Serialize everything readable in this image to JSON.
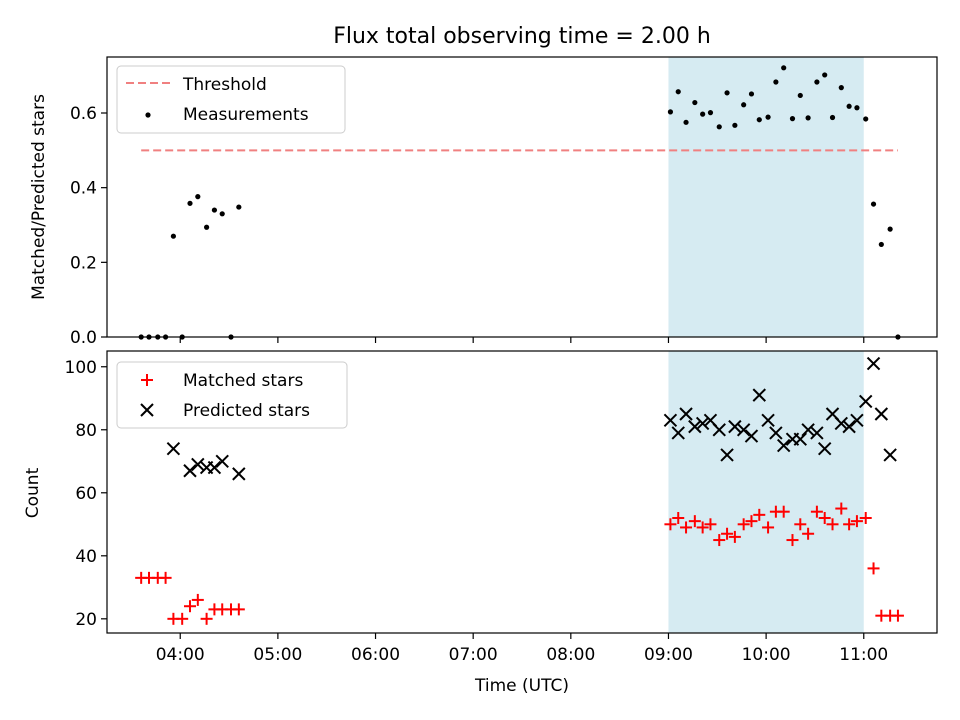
{
  "chart_data": [
    {
      "type": "scatter",
      "title": "Flux total observing time = 2.00 h",
      "ylabel": "Matched/Predicted stars",
      "xlabel": "",
      "x_unit": "hours UTC",
      "xlim": [
        3.25,
        11.75
      ],
      "ylim": [
        0,
        0.75
      ],
      "x_ticks": [
        4,
        5,
        6,
        7,
        8,
        9,
        10,
        11
      ],
      "y_ticks": [
        0.0,
        0.2,
        0.4,
        0.6
      ],
      "y_tick_labels": [
        "0.0",
        "0.2",
        "0.4",
        "0.6"
      ],
      "legend": {
        "position": "top-left",
        "entries": [
          "Threshold",
          "Measurements"
        ]
      },
      "shaded_span": {
        "x0": 9.0,
        "x1": 11.0,
        "color": "#add8e6"
      },
      "threshold": {
        "name": "Threshold",
        "value": 0.5,
        "x0": 3.6,
        "x1": 11.35,
        "color": "#f08080"
      },
      "series": [
        {
          "name": "Measurements",
          "color": "#000000",
          "points": [
            [
              3.6,
              0.0
            ],
            [
              3.68,
              0.0
            ],
            [
              3.77,
              0.0
            ],
            [
              3.85,
              0.0
            ],
            [
              3.93,
              0.27
            ],
            [
              4.02,
              0.0
            ],
            [
              4.1,
              0.358
            ],
            [
              4.18,
              0.376
            ],
            [
              4.27,
              0.294
            ],
            [
              4.35,
              0.34
            ],
            [
              4.43,
              0.33
            ],
            [
              4.52,
              0.0
            ],
            [
              4.6,
              0.348
            ],
            [
              9.02,
              0.603
            ],
            [
              9.1,
              0.657
            ],
            [
              9.18,
              0.575
            ],
            [
              9.27,
              0.628
            ],
            [
              9.35,
              0.597
            ],
            [
              9.43,
              0.601
            ],
            [
              9.52,
              0.563
            ],
            [
              9.6,
              0.654
            ],
            [
              9.68,
              0.567
            ],
            [
              9.77,
              0.622
            ],
            [
              9.85,
              0.651
            ],
            [
              9.93,
              0.582
            ],
            [
              10.02,
              0.589
            ],
            [
              10.1,
              0.683
            ],
            [
              10.18,
              0.721
            ],
            [
              10.27,
              0.585
            ],
            [
              10.35,
              0.647
            ],
            [
              10.43,
              0.587
            ],
            [
              10.52,
              0.683
            ],
            [
              10.6,
              0.702
            ],
            [
              10.68,
              0.588
            ],
            [
              10.77,
              0.668
            ],
            [
              10.85,
              0.618
            ],
            [
              10.93,
              0.614
            ],
            [
              11.02,
              0.584
            ],
            [
              11.1,
              0.356
            ],
            [
              11.18,
              0.248
            ],
            [
              11.27,
              0.289
            ],
            [
              11.35,
              0.0
            ]
          ]
        }
      ]
    },
    {
      "type": "scatter",
      "title": "",
      "ylabel": "Count",
      "xlabel": "Time (UTC)",
      "x_unit": "hours UTC",
      "xlim": [
        3.25,
        11.75
      ],
      "ylim": [
        15.5,
        105
      ],
      "x_ticks": [
        4,
        5,
        6,
        7,
        8,
        9,
        10,
        11
      ],
      "x_tick_labels": [
        "04:00",
        "05:00",
        "06:00",
        "07:00",
        "08:00",
        "09:00",
        "10:00",
        "11:00"
      ],
      "y_ticks": [
        20,
        40,
        60,
        80,
        100
      ],
      "y_tick_labels": [
        "20",
        "40",
        "60",
        "80",
        "100"
      ],
      "legend": {
        "position": "top-left",
        "entries": [
          "Matched stars",
          "Predicted stars"
        ]
      },
      "shaded_span": {
        "x0": 9.0,
        "x1": 11.0,
        "color": "#add8e6"
      },
      "series": [
        {
          "name": "Matched stars",
          "marker": "+",
          "color": "#ff0000",
          "points": [
            [
              3.6,
              33
            ],
            [
              3.68,
              33
            ],
            [
              3.77,
              33
            ],
            [
              3.85,
              33
            ],
            [
              3.93,
              20
            ],
            [
              4.02,
              20
            ],
            [
              4.1,
              24
            ],
            [
              4.18,
              26
            ],
            [
              4.27,
              20
            ],
            [
              4.35,
              23
            ],
            [
              4.43,
              23
            ],
            [
              4.52,
              23
            ],
            [
              4.6,
              23
            ],
            [
              9.02,
              50
            ],
            [
              9.1,
              52
            ],
            [
              9.18,
              49
            ],
            [
              9.27,
              51
            ],
            [
              9.35,
              49
            ],
            [
              9.43,
              50
            ],
            [
              9.52,
              45
            ],
            [
              9.6,
              47
            ],
            [
              9.68,
              46
            ],
            [
              9.77,
              50
            ],
            [
              9.85,
              51
            ],
            [
              9.93,
              53
            ],
            [
              10.02,
              49
            ],
            [
              10.1,
              54
            ],
            [
              10.18,
              54
            ],
            [
              10.27,
              45
            ],
            [
              10.35,
              50
            ],
            [
              10.43,
              47
            ],
            [
              10.52,
              54
            ],
            [
              10.6,
              52
            ],
            [
              10.68,
              50
            ],
            [
              10.77,
              55
            ],
            [
              10.85,
              50
            ],
            [
              10.93,
              51
            ],
            [
              11.02,
              52
            ],
            [
              11.1,
              36
            ],
            [
              11.18,
              21
            ],
            [
              11.27,
              21
            ],
            [
              11.35,
              21
            ]
          ]
        },
        {
          "name": "Predicted stars",
          "marker": "x",
          "color": "#000000",
          "points": [
            [
              3.93,
              74
            ],
            [
              4.1,
              67
            ],
            [
              4.18,
              69
            ],
            [
              4.27,
              68
            ],
            [
              4.35,
              68
            ],
            [
              4.43,
              70
            ],
            [
              4.6,
              66
            ],
            [
              9.02,
              83
            ],
            [
              9.1,
              79
            ],
            [
              9.18,
              85
            ],
            [
              9.27,
              81
            ],
            [
              9.35,
              82
            ],
            [
              9.43,
              83
            ],
            [
              9.52,
              80
            ],
            [
              9.6,
              72
            ],
            [
              9.68,
              81
            ],
            [
              9.77,
              80
            ],
            [
              9.85,
              78
            ],
            [
              9.93,
              91
            ],
            [
              10.02,
              83
            ],
            [
              10.1,
              79
            ],
            [
              10.18,
              75
            ],
            [
              10.27,
              77
            ],
            [
              10.35,
              77
            ],
            [
              10.43,
              80
            ],
            [
              10.52,
              79
            ],
            [
              10.6,
              74
            ],
            [
              10.68,
              85
            ],
            [
              10.77,
              82
            ],
            [
              10.85,
              81
            ],
            [
              10.93,
              83
            ],
            [
              11.02,
              89
            ],
            [
              11.1,
              101
            ],
            [
              11.18,
              85
            ],
            [
              11.27,
              72
            ]
          ]
        }
      ]
    }
  ]
}
